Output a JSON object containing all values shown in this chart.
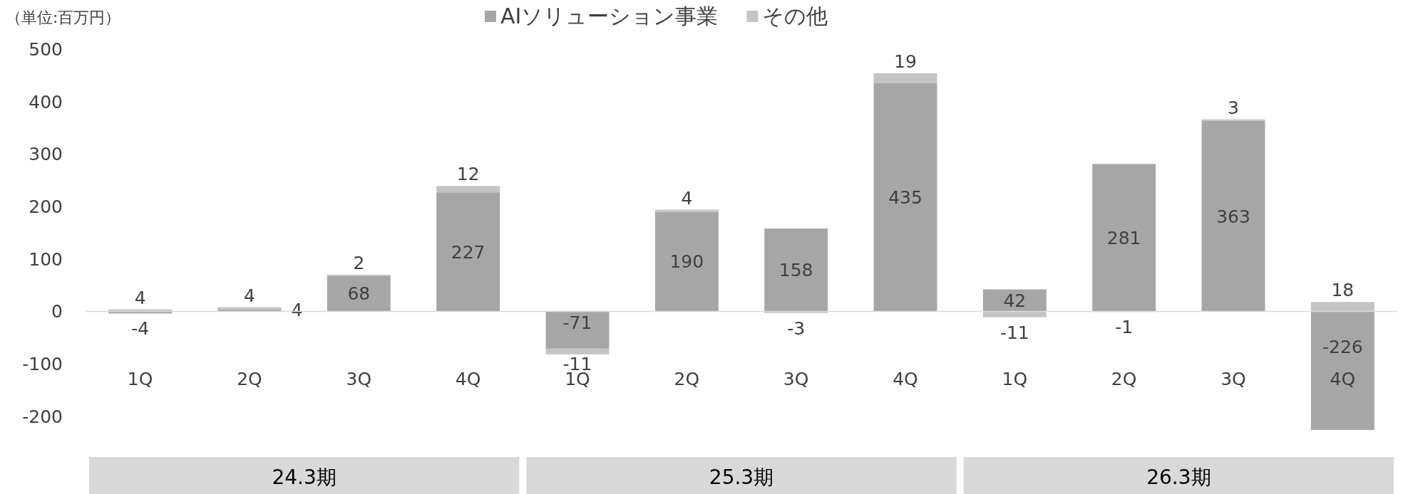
{
  "chart_data": {
    "type": "bar",
    "stacked": true,
    "ylabel": "（単位:百万円）",
    "categories": [
      "1Q",
      "2Q",
      "3Q",
      "4Q",
      "1Q",
      "2Q",
      "3Q",
      "4Q",
      "1Q",
      "2Q",
      "3Q",
      "4Q"
    ],
    "series": [
      {
        "name": "AIソリューション事業",
        "color": "#a6a6a6",
        "values": [
          -4,
          4,
          68,
          227,
          -71,
          190,
          158,
          435,
          42,
          281,
          363,
          -226
        ]
      },
      {
        "name": "その他",
        "color": "#c4c4c4",
        "values": [
          4,
          4,
          2,
          12,
          -11,
          4,
          -3,
          19,
          -11,
          -1,
          3,
          18
        ]
      }
    ],
    "annotations": [
      "24.3期",
      "25.3期",
      "26.3期"
    ],
    "ref_lines": [
      {
        "axis": "y",
        "value": 0,
        "color": "#d9d9d9"
      }
    ],
    "ylim": [
      -230,
      500
    ],
    "yticks": [
      -200,
      -100,
      0,
      100,
      200,
      300,
      400,
      500
    ],
    "grid": false,
    "legend": "top",
    "data_labels": true
  }
}
